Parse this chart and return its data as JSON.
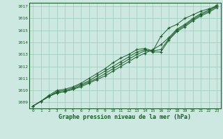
{
  "xlabel": "Graphe pression niveau de la mer (hPa)",
  "bg_color": "#cce8e0",
  "grid_color": "#99ccbb",
  "line_color": "#1a5c2a",
  "xlim": [
    -0.5,
    23.5
  ],
  "ylim": [
    1008.5,
    1017.3
  ],
  "xticks": [
    0,
    1,
    2,
    3,
    4,
    5,
    6,
    7,
    8,
    9,
    10,
    11,
    12,
    13,
    14,
    15,
    16,
    17,
    18,
    19,
    20,
    21,
    22,
    23
  ],
  "yticks": [
    1009,
    1010,
    1011,
    1012,
    1013,
    1014,
    1015,
    1016,
    1017
  ],
  "series": [
    [
      1008.7,
      1009.1,
      1009.5,
      1009.8,
      1009.9,
      1010.1,
      1010.3,
      1010.6,
      1010.9,
      1011.2,
      1011.6,
      1012.0,
      1012.4,
      1012.8,
      1013.1,
      1013.4,
      1013.8,
      1014.4,
      1015.1,
      1015.5,
      1016.0,
      1016.4,
      1016.7,
      1017.1
    ],
    [
      1008.7,
      1009.1,
      1009.5,
      1009.8,
      1009.9,
      1010.1,
      1010.4,
      1010.7,
      1011.0,
      1011.4,
      1011.8,
      1012.2,
      1012.6,
      1013.0,
      1013.3,
      1013.3,
      1013.4,
      1014.3,
      1015.0,
      1015.4,
      1015.9,
      1016.3,
      1016.6,
      1017.0
    ],
    [
      1008.7,
      1009.1,
      1009.5,
      1009.9,
      1010.0,
      1010.2,
      1010.5,
      1010.8,
      1011.2,
      1011.6,
      1012.0,
      1012.4,
      1012.8,
      1013.2,
      1013.4,
      1013.2,
      1013.2,
      1014.2,
      1014.9,
      1015.3,
      1015.8,
      1016.2,
      1016.5,
      1016.9
    ],
    [
      1008.7,
      1009.1,
      1009.6,
      1010.0,
      1010.1,
      1010.3,
      1010.6,
      1011.0,
      1011.4,
      1011.8,
      1012.3,
      1012.7,
      1013.0,
      1013.4,
      1013.5,
      1013.3,
      1014.5,
      1015.2,
      1015.5,
      1016.0,
      1016.3,
      1016.6,
      1016.8,
      1017.0
    ]
  ]
}
